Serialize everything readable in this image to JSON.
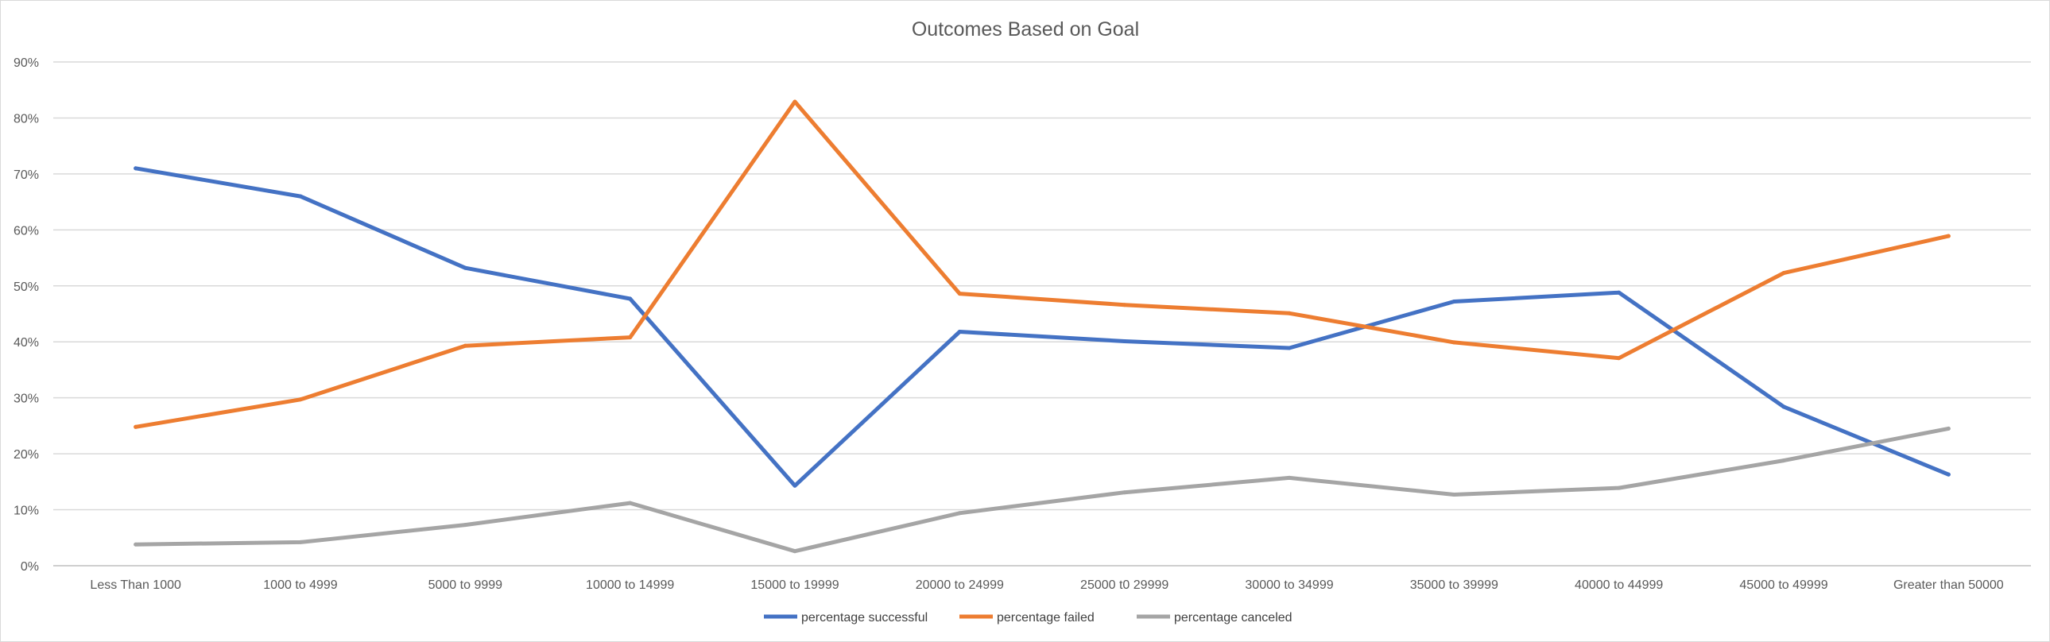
{
  "chart_data": {
    "type": "line",
    "title": "Outcomes Based on Goal",
    "xlabel": "",
    "ylabel": "",
    "ylim": [
      0,
      0.9
    ],
    "y_ticks": [
      "0%",
      "10%",
      "20%",
      "30%",
      "40%",
      "50%",
      "60%",
      "70%",
      "80%",
      "90%"
    ],
    "grid": true,
    "legend_position": "bottom",
    "categories": [
      "Less Than 1000",
      "1000 to 4999",
      "5000 to 9999",
      "10000 to 14999",
      "15000 to 19999",
      "20000 to 24999",
      "25000 t0 29999",
      "30000 to 34999",
      "35000 to 39999",
      "40000 to 44999",
      "45000 to 49999",
      "Greater than 50000"
    ],
    "series": [
      {
        "name": "percentage successful",
        "color": "#4472c4",
        "values": [
          0.71,
          0.66,
          0.532,
          0.477,
          0.143,
          0.418,
          0.401,
          0.389,
          0.472,
          0.488,
          0.284,
          0.163
        ]
      },
      {
        "name": "percentage failed",
        "color": "#ed7d31",
        "values": [
          0.248,
          0.297,
          0.393,
          0.408,
          0.829,
          0.486,
          0.466,
          0.451,
          0.399,
          0.371,
          0.523,
          0.589
        ]
      },
      {
        "name": "percentage canceled",
        "color": "#a5a5a5",
        "values": [
          0.038,
          0.042,
          0.073,
          0.112,
          0.026,
          0.094,
          0.131,
          0.157,
          0.127,
          0.139,
          0.188,
          0.245
        ]
      }
    ]
  }
}
